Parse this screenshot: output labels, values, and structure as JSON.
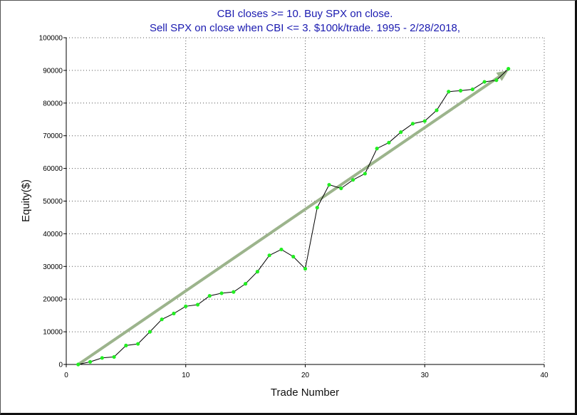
{
  "chart_data": {
    "type": "line",
    "title_lines": [
      "CBI closes >= 10. Buy SPX on close.",
      "Sell SPX on close when CBI <= 3. $100k/trade. 1995 - 2/28/2018,"
    ],
    "xlabel": "Trade Number",
    "ylabel": "Equity($)",
    "xlim": [
      0,
      40
    ],
    "ylim": [
      0,
      100000
    ],
    "x_ticks": [
      0,
      10,
      20,
      30,
      40
    ],
    "y_ticks": [
      0,
      10000,
      20000,
      30000,
      40000,
      50000,
      60000,
      70000,
      80000,
      90000,
      100000
    ],
    "grid": true,
    "series": [
      {
        "x": [
          1,
          2,
          3,
          4,
          5,
          6,
          7,
          8,
          9,
          10,
          11,
          12,
          13,
          14,
          15,
          16,
          17,
          18,
          19,
          20,
          21,
          22,
          23,
          24,
          25,
          26,
          27,
          28,
          29,
          30,
          31,
          32,
          33,
          34,
          35,
          36,
          37
        ],
        "y": [
          0,
          800,
          2000,
          2300,
          5800,
          6300,
          10000,
          13800,
          15600,
          17800,
          18300,
          21000,
          21800,
          22200,
          24700,
          28400,
          33400,
          35200,
          33000,
          29300,
          48000,
          55000,
          53900,
          56500,
          58400,
          66100,
          67900,
          71100,
          73700,
          74500,
          77800,
          83500,
          83800,
          84200,
          86500,
          87000,
          90500
        ],
        "color": "#000000",
        "marker_color": "#22ee22"
      }
    ],
    "trend_arrow": {
      "x": [
        1,
        37
      ],
      "y": [
        0,
        90000
      ],
      "color": "#9cb48c"
    }
  }
}
